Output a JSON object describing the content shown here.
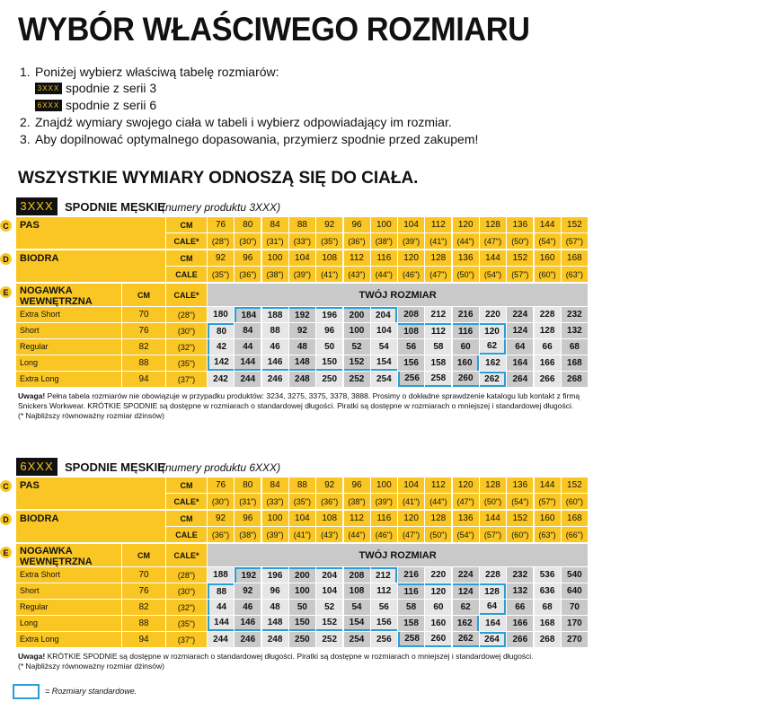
{
  "title": "WYBÓR WŁAŚCIWEGO ROZMIARU",
  "steps": [
    {
      "number": "1.",
      "text": "Poniżej wybierz właściwą tabelę rozmiarów:"
    },
    {
      "number": "2.",
      "text": "Znajdź wymiary swojego ciała w tabeli i wybierz odpowiadający im rozmiar."
    },
    {
      "number": "3.",
      "text": "Aby dopilnować optymalnego dopasowania, przymierz spodnie przed zakupem!"
    }
  ],
  "series_options": [
    {
      "badge": "3XXX",
      "text": "spodnie z serii 3"
    },
    {
      "badge": "6XXX",
      "text": "spodnie z serii 6"
    }
  ],
  "subtitle": "WSZYSTKIE WYMIARY ODNOSZĄ SIĘ DO CIAŁA.",
  "tables": [
    {
      "badge": "3XXX",
      "title": "SPODNIE MĘSKIE",
      "subtitle": "(numery produktu 3XXX)",
      "waist": {
        "letter": "C",
        "label": "PAS",
        "cm_label": "CM",
        "cm": [
          76,
          80,
          84,
          88,
          92,
          96,
          100,
          104,
          112,
          120,
          128,
          136,
          144,
          152
        ],
        "in_label": "CALE*",
        "in": [
          "(28\")",
          "(30\")",
          "(31\")",
          "(33\")",
          "(35\")",
          "(36\")",
          "(38\")",
          "(39\")",
          "(41\")",
          "(44\")",
          "(47\")",
          "(50\")",
          "(54\")",
          "(57\")"
        ]
      },
      "hips": {
        "letter": "D",
        "label": "BIODRA",
        "cm_label": "CM",
        "cm": [
          92,
          96,
          100,
          104,
          108,
          112,
          116,
          120,
          128,
          136,
          144,
          152,
          160,
          168
        ],
        "in_label": "CALE",
        "in": [
          "(35\")",
          "(36\")",
          "(38\")",
          "(39\")",
          "(41\")",
          "(43\")",
          "(44\")",
          "(46\")",
          "(47\")",
          "(50\")",
          "(54\")",
          "(57\")",
          "(60\")",
          "(63\")"
        ]
      },
      "inseam": {
        "letter": "E",
        "label": "NOGAWKA WEWNĘTRZNA",
        "cm_label": "CM",
        "in_label": "CALE*",
        "size_header": "TWÓJ ROZMIAR",
        "rows": [
          {
            "name": "Extra Short",
            "cm": 70,
            "in": "(28\")",
            "sizes": [
              180,
              184,
              188,
              192,
              196,
              200,
              204,
              208,
              212,
              216,
              220,
              224,
              228,
              232
            ]
          },
          {
            "name": "Short",
            "cm": 76,
            "in": "(30\")",
            "sizes": [
              80,
              84,
              88,
              92,
              96,
              100,
              104,
              108,
              112,
              116,
              120,
              124,
              128,
              132
            ]
          },
          {
            "name": "Regular",
            "cm": 82,
            "in": "(32\")",
            "sizes": [
              42,
              44,
              46,
              48,
              50,
              52,
              54,
              56,
              58,
              60,
              62,
              64,
              66,
              68
            ]
          },
          {
            "name": "Long",
            "cm": 88,
            "in": "(35\")",
            "sizes": [
              142,
              144,
              146,
              148,
              150,
              152,
              154,
              156,
              158,
              160,
              162,
              164,
              166,
              168
            ]
          },
          {
            "name": "Extra Long",
            "cm": 94,
            "in": "(37\")",
            "sizes": [
              242,
              244,
              246,
              248,
              250,
              252,
              254,
              256,
              258,
              260,
              262,
              264,
              266,
              268
            ]
          }
        ]
      },
      "note": {
        "lead": "Uwaga!",
        "text": "Pełna tabela rozmiarów nie obowiązuje w przypadku produktów: 3234, 3275, 3375, 3378, 3888. Prosimy o dokładne sprawdzenie katalogu lub kontakt z firmą Snickers Workwear. KRÓTKIE SPODNIE są dostępne w rozmiarach o standardowej długości. Piratki są dostępne w rozmiarach o mniejszej i standardowej długości."
      },
      "footnote": "(* Najbliższy równoważny rozmiar dżinsów)"
    },
    {
      "badge": "6XXX",
      "title": "SPODNIE MĘSKIE",
      "subtitle": "(numery produktu 6XXX)",
      "waist": {
        "letter": "C",
        "label": "PAS",
        "cm_label": "CM",
        "cm": [
          76,
          80,
          84,
          88,
          92,
          96,
          100,
          104,
          112,
          120,
          128,
          136,
          144,
          152
        ],
        "in_label": "CALE*",
        "in": [
          "(30\")",
          "(31\")",
          "(33\")",
          "(35\")",
          "(36\")",
          "(38\")",
          "(39\")",
          "(41\")",
          "(44\")",
          "(47\")",
          "(50\")",
          "(54\")",
          "(57\")",
          "(60\")"
        ]
      },
      "hips": {
        "letter": "D",
        "label": "BIODRA",
        "cm_label": "CM",
        "cm": [
          92,
          96,
          100,
          104,
          108,
          112,
          116,
          120,
          128,
          136,
          144,
          152,
          160,
          168
        ],
        "in_label": "CALE",
        "in": [
          "(36\")",
          "(38\")",
          "(39\")",
          "(41\")",
          "(43\")",
          "(44\")",
          "(46\")",
          "(47\")",
          "(50\")",
          "(54\")",
          "(57\")",
          "(60\")",
          "(63\")",
          "(66\")"
        ]
      },
      "inseam": {
        "letter": "E",
        "label": "NOGAWKA WEWNĘTRZNA",
        "cm_label": "CM",
        "in_label": "CALE*",
        "size_header": "TWÓJ ROZMIAR",
        "rows": [
          {
            "name": "Extra Short",
            "cm": 70,
            "in": "(28\")",
            "sizes": [
              188,
              192,
              196,
              200,
              204,
              208,
              212,
              216,
              220,
              224,
              228,
              232,
              536,
              540
            ]
          },
          {
            "name": "Short",
            "cm": 76,
            "in": "(30\")",
            "sizes": [
              88,
              92,
              96,
              100,
              104,
              108,
              112,
              116,
              120,
              124,
              128,
              132,
              636,
              640
            ]
          },
          {
            "name": "Regular",
            "cm": 82,
            "in": "(32\")",
            "sizes": [
              44,
              46,
              48,
              50,
              52,
              54,
              56,
              58,
              60,
              62,
              64,
              66,
              68,
              70
            ]
          },
          {
            "name": "Long",
            "cm": 88,
            "in": "(35\")",
            "sizes": [
              144,
              146,
              148,
              150,
              152,
              154,
              156,
              158,
              160,
              162,
              164,
              166,
              168,
              170
            ]
          },
          {
            "name": "Extra Long",
            "cm": 94,
            "in": "(37\")",
            "sizes": [
              244,
              246,
              248,
              250,
              252,
              254,
              256,
              258,
              260,
              262,
              264,
              266,
              268,
              270
            ]
          }
        ]
      },
      "note": {
        "lead": "Uwaga!",
        "text": "KRÓTKIE SPODNIE są dostępne w rozmiarach o standardowej długości. Piratki są dostępne w rozmiarach o mniejszej i standardowej długości."
      },
      "footnote": "(* Najbliższy równoważny rozmiar dżinsów)"
    }
  ],
  "legend": "= Rozmiary standardowe."
}
